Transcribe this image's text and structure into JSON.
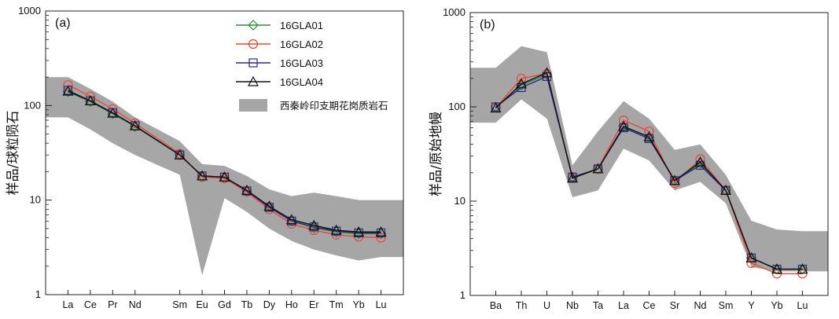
{
  "chart_data": [
    {
      "type": "line",
      "panel_label": "(a)",
      "ylabel": "样品/球粒陨石",
      "yscale": "log",
      "ylim": [
        1,
        1000
      ],
      "yticks": [
        "1",
        "10",
        "100",
        "1000"
      ],
      "categories": [
        "La",
        "Ce",
        "Pr",
        "Nd",
        "Sm",
        "Eu",
        "Gd",
        "Tb",
        "Dy",
        "Ho",
        "Er",
        "Tm",
        "Yb",
        "Lu"
      ],
      "positions": [
        1,
        2,
        3,
        4,
        6,
        7,
        8,
        9,
        10,
        11,
        12,
        13,
        14,
        15
      ],
      "legend_position": "top-right",
      "series": [
        {
          "name": "16GLA01",
          "marker": "diamond",
          "color": "#2e8b3a",
          "values": [
            140,
            110,
            82,
            60,
            30,
            18,
            17,
            12.5,
            8.5,
            6.0,
            5.1,
            4.6,
            4.4,
            4.4
          ]
        },
        {
          "name": "16GLA02",
          "marker": "circle",
          "color": "#e8483a",
          "values": [
            165,
            125,
            92,
            65,
            31,
            17.5,
            17,
            12.2,
            8.0,
            5.6,
            4.8,
            4.3,
            4.1,
            4.0
          ]
        },
        {
          "name": "16GLA03",
          "marker": "square",
          "color": "#2a2a8a",
          "values": [
            145,
            112,
            84,
            61,
            30,
            18,
            17.5,
            12.5,
            8.4,
            6.0,
            5.2,
            4.7,
            4.5,
            4.5
          ]
        },
        {
          "name": "16GLA04",
          "marker": "triangle",
          "color": "#111111",
          "values": [
            142,
            112,
            83,
            61,
            30,
            18,
            17.5,
            12.7,
            8.6,
            6.2,
            5.4,
            4.8,
            4.6,
            4.6
          ]
        }
      ],
      "range": {
        "name": "西秦岭印支期花岗质岩石",
        "color": "#a6a6a6",
        "upper": [
          200,
          150,
          110,
          75,
          42,
          24,
          23,
          18,
          13,
          11,
          12,
          11,
          10,
          10
        ],
        "lower": [
          75,
          56,
          40,
          30,
          18.5,
          1.6,
          10.5,
          7.5,
          5.0,
          3.7,
          3.0,
          2.6,
          2.3,
          2.5
        ]
      }
    },
    {
      "type": "line",
      "panel_label": "(b)",
      "ylabel": "样品/原始地幔",
      "yscale": "log",
      "ylim": [
        1,
        1000
      ],
      "yticks": [
        "1",
        "10",
        "100",
        "1000"
      ],
      "categories": [
        "Ba",
        "Th",
        "U",
        "Nb",
        "Ta",
        "La",
        "Ce",
        "Sr",
        "Nd",
        "Sm",
        "Y",
        "Yb",
        "Lu"
      ],
      "positions": [
        1,
        2,
        3,
        4,
        5,
        6,
        7,
        8,
        9,
        10,
        11,
        12,
        13
      ],
      "series": [
        {
          "name": "16GLA01",
          "marker": "diamond",
          "color": "#2e8b3a",
          "values": [
            100,
            170,
            220,
            18,
            22,
            62,
            48,
            16.5,
            25,
            13,
            2.5,
            1.9,
            1.9
          ]
        },
        {
          "name": "16GLA02",
          "marker": "circle",
          "color": "#e8483a",
          "values": [
            98,
            200,
            225,
            17.5,
            22,
            72,
            55,
            15.5,
            28,
            13,
            2.2,
            1.7,
            1.7
          ]
        },
        {
          "name": "16GLA03",
          "marker": "square",
          "color": "#2a2a8a",
          "values": [
            100,
            160,
            210,
            18,
            22,
            60,
            46,
            16.5,
            24,
            13,
            2.5,
            1.9,
            1.9
          ]
        },
        {
          "name": "16GLA04",
          "marker": "triangle",
          "color": "#111111",
          "values": [
            97,
            175,
            230,
            17.5,
            22,
            62,
            48,
            16.5,
            26,
            13,
            2.5,
            1.9,
            1.9
          ]
        }
      ],
      "range": {
        "name": "西秦岭印支期花岗质岩石",
        "color": "#a6a6a6",
        "upper": [
          260,
          440,
          380,
          24,
          55,
          115,
          75,
          35,
          40,
          19,
          6.2,
          5.0,
          4.8
        ],
        "lower": [
          68,
          120,
          75,
          11,
          13,
          36,
          27,
          13,
          16,
          9.5,
          2.0,
          1.8,
          1.8
        ]
      }
    }
  ]
}
